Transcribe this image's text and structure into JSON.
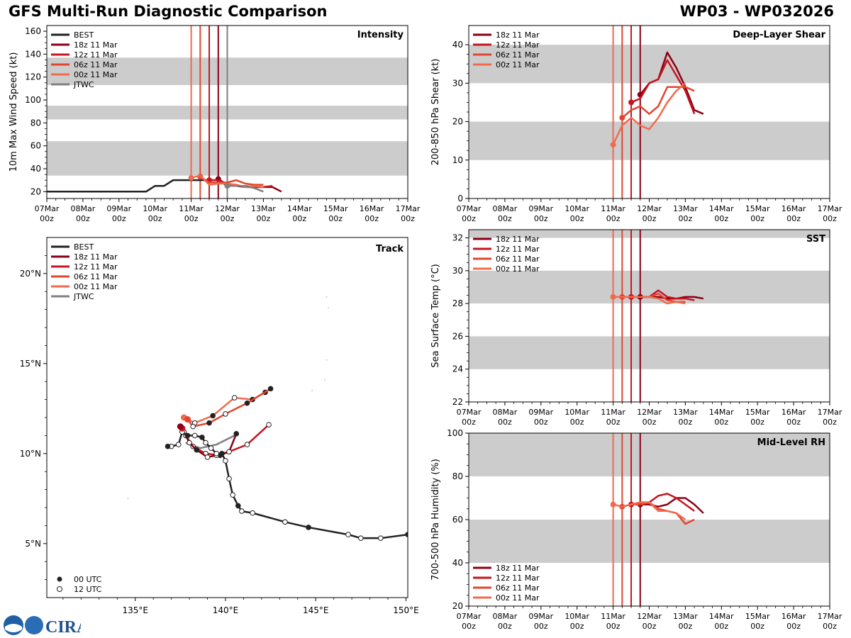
{
  "header": {
    "title": "GFS Multi-Run Diagnostic Comparison",
    "storm": "WP03 - WP032026"
  },
  "logo": {
    "text": "CIRA"
  },
  "colors": {
    "best": "#222222",
    "r18": "#8b0016",
    "r12": "#c8141e",
    "r06": "#e2452f",
    "r00": "#f06a4e",
    "jtwc": "#808080",
    "band": "#cccccc"
  },
  "time_ticks": {
    "top": [
      "07Mar",
      "08Mar",
      "09Mar",
      "10Mar",
      "11Mar",
      "12Mar",
      "13Mar",
      "14Mar",
      "15Mar",
      "16Mar",
      "17Mar"
    ],
    "bottom": [
      "00z",
      "00z",
      "00z",
      "00z",
      "00z",
      "00z",
      "00z",
      "00z",
      "00z",
      "00z",
      "00z"
    ]
  },
  "chart_data": [
    {
      "id": "intensity",
      "type": "line",
      "title": "Intensity",
      "ylabel": "10m Max Wind Speed (kt)",
      "xlim": [
        0,
        10
      ],
      "ylim": [
        14,
        165
      ],
      "yticks": [
        20,
        40,
        60,
        80,
        100,
        120,
        140,
        160
      ],
      "bands": [
        [
          34,
          64
        ],
        [
          83,
          95
        ],
        [
          113,
          137
        ]
      ],
      "vlines": [
        {
          "x": 4.0,
          "color": "r00"
        },
        {
          "x": 4.25,
          "color": "r06"
        },
        {
          "x": 4.5,
          "color": "r12"
        },
        {
          "x": 4.75,
          "color": "r18"
        },
        {
          "x": 5.0,
          "color": "jtwc"
        }
      ],
      "legend": [
        "BEST",
        "18z 11 Mar",
        "12z 11 Mar",
        "06z 11 Mar",
        "00z 11 Mar",
        "JTWC"
      ],
      "series": [
        {
          "name": "BEST",
          "color": "best",
          "x": [
            0,
            0.25,
            0.5,
            0.75,
            1,
            1.25,
            1.5,
            1.75,
            2,
            2.25,
            2.5,
            2.75,
            3,
            3.25,
            3.5,
            3.75,
            4,
            4.25,
            4.5,
            4.75,
            5
          ],
          "y": [
            20,
            20,
            20,
            20,
            20,
            20,
            20,
            20,
            20,
            20,
            20,
            20,
            25,
            25,
            30,
            30,
            30,
            30,
            30,
            30,
            25
          ],
          "start": null
        },
        {
          "name": "18z 11 Mar",
          "color": "r18",
          "x": [
            4.75,
            5.0,
            5.25,
            5.5,
            5.75,
            6.0,
            6.25,
            6.5
          ],
          "y": [
            31,
            26,
            25,
            24,
            24,
            24,
            24,
            20
          ],
          "start": 4.75
        },
        {
          "name": "12z 11 Mar",
          "color": "r12",
          "x": [
            4.5,
            4.75,
            5.0,
            5.25,
            5.5,
            5.75,
            6.0,
            6.25
          ],
          "y": [
            30,
            30,
            26,
            25,
            25,
            24,
            24,
            25
          ],
          "start": 4.5
        },
        {
          "name": "06z 11 Mar",
          "color": "r06",
          "x": [
            4.25,
            4.5,
            4.75,
            5.0,
            5.25,
            5.5,
            5.75,
            6.0
          ],
          "y": [
            33,
            28,
            28,
            28,
            30,
            27,
            26,
            26
          ],
          "start": 4.25
        },
        {
          "name": "00z 11 Mar",
          "color": "r00",
          "x": [
            4.0,
            4.25,
            4.5,
            4.75,
            5.0,
            5.25,
            5.5,
            5.75,
            6.0
          ],
          "y": [
            32,
            34,
            26,
            27,
            27,
            26,
            24,
            25,
            24
          ],
          "start": 4.0
        },
        {
          "name": "JTWC",
          "color": "jtwc",
          "x": [
            5.0,
            5.25,
            5.5,
            5.75,
            6.0
          ],
          "y": [
            25,
            25,
            25,
            23,
            20
          ],
          "start": 5.0
        }
      ]
    },
    {
      "id": "shear",
      "type": "line",
      "title": "Deep-Layer Shear",
      "ylabel": "200-850 hPa Shear (kt)",
      "xlim": [
        0,
        10
      ],
      "ylim": [
        0,
        45
      ],
      "yticks": [
        0,
        10,
        20,
        30,
        40
      ],
      "bands": [
        [
          10,
          20
        ],
        [
          30,
          40
        ]
      ],
      "vlines": [
        {
          "x": 4.0,
          "color": "r00"
        },
        {
          "x": 4.25,
          "color": "r06"
        },
        {
          "x": 4.5,
          "color": "r12"
        },
        {
          "x": 4.75,
          "color": "r18"
        }
      ],
      "legend": [
        "18z 11 Mar",
        "12z 11 Mar",
        "06z 11 Mar",
        "00z 11 Mar"
      ],
      "series": [
        {
          "name": "18z 11 Mar",
          "color": "r18",
          "x": [
            4.75,
            5.0,
            5.25,
            5.5,
            5.75,
            6.0,
            6.25,
            6.5
          ],
          "y": [
            27,
            30,
            31,
            38,
            34,
            29,
            23,
            22
          ],
          "start": 4.75
        },
        {
          "name": "12z 11 Mar",
          "color": "r12",
          "x": [
            4.5,
            4.75,
            5.0,
            5.25,
            5.5,
            5.75,
            6.0,
            6.25
          ],
          "y": [
            25,
            26,
            30,
            31,
            36,
            32,
            28,
            22
          ],
          "start": 4.5
        },
        {
          "name": "06z 11 Mar",
          "color": "r06",
          "x": [
            4.25,
            4.5,
            4.75,
            5.0,
            5.25,
            5.5,
            5.75,
            6.0,
            6.25
          ],
          "y": [
            21,
            23,
            24,
            22,
            24,
            29,
            29,
            29,
            28
          ],
          "start": 4.25
        },
        {
          "name": "00z 11 Mar",
          "color": "r00",
          "x": [
            4.0,
            4.25,
            4.5,
            4.75,
            5.0,
            5.25,
            5.5,
            5.75,
            6.0
          ],
          "y": [
            14,
            19,
            21,
            19,
            18,
            21,
            25,
            28,
            30
          ],
          "start": 4.0
        }
      ]
    },
    {
      "id": "track",
      "type": "scatter",
      "title": "Track",
      "xlim": [
        130.1,
        150.1
      ],
      "ylim": [
        2,
        22
      ],
      "xticks": [
        135,
        140,
        145,
        150
      ],
      "yticks": [
        5,
        10,
        15,
        20
      ],
      "xticklabels": [
        "135°E",
        "140°E",
        "145°E",
        "150°E"
      ],
      "yticklabels": [
        "5°N",
        "10°N",
        "15°N",
        "20°N"
      ],
      "legend": [
        "BEST",
        "18z 11 Mar",
        "12z 11 Mar",
        "06z 11 Mar",
        "00z 11 Mar",
        "JTWC"
      ],
      "marker_legend": [
        "00 UTC",
        "12 UTC"
      ],
      "series": [
        {
          "name": "BEST",
          "color": "best",
          "lon": [
            150.1,
            148.6,
            147.5,
            146.8,
            144.6,
            143.3,
            141.5,
            140.9,
            140.7,
            140.4,
            140.2,
            140.0,
            139.8,
            139.5,
            139.2,
            138.9,
            138.7,
            138.3,
            137.9,
            137.6,
            137.4,
            137.0,
            136.8
          ],
          "lat": [
            5.5,
            5.3,
            5.3,
            5.5,
            5.9,
            6.2,
            6.7,
            6.8,
            7.1,
            7.7,
            8.6,
            9.6,
            10.0,
            10.0,
            10.3,
            10.6,
            10.9,
            11.0,
            11.0,
            11.2,
            10.5,
            10.4,
            10.4
          ],
          "filled": [
            1,
            0,
            0,
            0,
            1,
            0,
            0,
            0,
            1,
            0,
            0,
            0,
            1,
            0,
            0,
            0,
            1,
            0,
            1,
            0,
            0,
            0,
            1
          ]
        },
        {
          "name": "18z 11 Mar",
          "color": "r18",
          "lon": [
            137.5,
            137.7,
            138.0,
            138.4,
            139.0,
            139.5,
            140.2,
            140.6
          ],
          "lat": [
            11.5,
            11.2,
            10.6,
            10.2,
            9.8,
            9.9,
            10.1,
            11.1
          ],
          "filled": [
            1,
            0,
            0,
            1,
            0,
            0,
            0,
            1
          ]
        },
        {
          "name": "12z 11 Mar",
          "color": "r12",
          "lon": [
            137.6,
            137.8,
            138.2,
            138.9,
            139.7,
            141.2,
            142.4
          ],
          "lat": [
            11.4,
            11.0,
            10.4,
            10.0,
            9.9,
            10.5,
            11.6
          ],
          "filled": [
            1,
            0,
            0,
            0,
            1,
            0,
            0
          ]
        },
        {
          "name": "06z 11 Mar",
          "color": "r06",
          "lon": [
            137.9,
            138.2,
            139.1,
            140.0,
            141.2,
            142.5
          ],
          "lat": [
            11.9,
            11.5,
            11.7,
            12.2,
            12.8,
            13.6
          ],
          "filled": [
            1,
            0,
            1,
            0,
            1,
            1
          ]
        },
        {
          "name": "00z 11 Mar",
          "color": "r00",
          "lon": [
            137.7,
            138.3,
            139.3,
            140.5,
            141.5,
            142.2
          ],
          "lat": [
            12.0,
            11.7,
            12.1,
            13.1,
            13.0,
            13.4
          ],
          "filled": [
            1,
            0,
            1,
            0,
            1,
            1
          ]
        },
        {
          "name": "JTWC",
          "color": "jtwc",
          "lon": [
            137.8,
            138.6,
            139.5,
            140.5
          ],
          "lat": [
            10.6,
            10.3,
            10.5,
            11.0
          ],
          "filled": [
            0,
            0,
            0,
            0
          ]
        }
      ]
    },
    {
      "id": "sst",
      "type": "line",
      "title": "SST",
      "ylabel": "Sea Surface Temp (°C)",
      "xlim": [
        0,
        10
      ],
      "ylim": [
        22,
        32.5
      ],
      "yticks": [
        22,
        24,
        26,
        28,
        30,
        32
      ],
      "bands": [
        [
          24,
          26
        ],
        [
          28,
          30
        ],
        [
          32,
          34
        ]
      ],
      "vlines": [
        {
          "x": 4.0,
          "color": "r00"
        },
        {
          "x": 4.25,
          "color": "r06"
        },
        {
          "x": 4.5,
          "color": "r12"
        },
        {
          "x": 4.75,
          "color": "r18"
        }
      ],
      "legend": [
        "18z 11 Mar",
        "12z 11 Mar",
        "06z 11 Mar",
        "00z 11 Mar"
      ],
      "series": [
        {
          "name": "18z 11 Mar",
          "color": "r18",
          "x": [
            4.75,
            5.0,
            5.25,
            5.5,
            5.75,
            6.0,
            6.25,
            6.5
          ],
          "y": [
            28.4,
            28.4,
            28.4,
            28.3,
            28.3,
            28.4,
            28.4,
            28.3
          ],
          "start": 4.75
        },
        {
          "name": "12z 11 Mar",
          "color": "r12",
          "x": [
            4.5,
            4.75,
            5.0,
            5.25,
            5.5,
            5.75,
            6.0,
            6.25
          ],
          "y": [
            28.4,
            28.4,
            28.4,
            28.8,
            28.4,
            28.3,
            28.3,
            28.2
          ],
          "start": 4.5
        },
        {
          "name": "06z 11 Mar",
          "color": "r06",
          "x": [
            4.25,
            4.5,
            4.75,
            5.0,
            5.25,
            5.5,
            5.75,
            6.0
          ],
          "y": [
            28.4,
            28.4,
            28.4,
            28.4,
            28.6,
            28.2,
            28.1,
            28.1
          ],
          "start": 4.25
        },
        {
          "name": "00z 11 Mar",
          "color": "r00",
          "x": [
            4.0,
            4.25,
            4.5,
            4.75,
            5.0,
            5.25,
            5.5,
            5.75,
            6.0
          ],
          "y": [
            28.4,
            28.4,
            28.4,
            28.4,
            28.4,
            28.3,
            28.0,
            28.1,
            28.0
          ],
          "start": 4.0
        }
      ]
    },
    {
      "id": "rh",
      "type": "line",
      "title": "Mid-Level RH",
      "ylabel": "700-500 hPa Humidity (%)",
      "xlim": [
        0,
        10
      ],
      "ylim": [
        20,
        100
      ],
      "yticks": [
        20,
        40,
        60,
        80,
        100
      ],
      "bands": [
        [
          40,
          60
        ],
        [
          80,
          100
        ]
      ],
      "vlines": [
        {
          "x": 4.0,
          "color": "r00"
        },
        {
          "x": 4.25,
          "color": "r06"
        },
        {
          "x": 4.5,
          "color": "r12"
        },
        {
          "x": 4.75,
          "color": "r18"
        }
      ],
      "legend": [
        "18z 11 Mar",
        "12z 11 Mar",
        "06z 11 Mar",
        "00z 11 Mar"
      ],
      "series": [
        {
          "name": "18z 11 Mar",
          "color": "r18",
          "x": [
            4.75,
            5.0,
            5.25,
            5.5,
            5.75,
            6.0,
            6.25,
            6.5
          ],
          "y": [
            67,
            67,
            66,
            67,
            70,
            70,
            67,
            63
          ],
          "start": 4.75
        },
        {
          "name": "12z 11 Mar",
          "color": "r12",
          "x": [
            4.5,
            4.75,
            5.0,
            5.25,
            5.5,
            5.75,
            6.0,
            6.25
          ],
          "y": [
            67,
            68,
            68,
            71,
            72,
            70,
            67,
            64
          ],
          "start": 4.5
        },
        {
          "name": "06z 11 Mar",
          "color": "r06",
          "x": [
            4.25,
            4.5,
            4.75,
            5.0,
            5.25,
            5.5,
            5.75,
            6.0,
            6.25
          ],
          "y": [
            66,
            67,
            67,
            68,
            65,
            64,
            63,
            58,
            60
          ],
          "start": 4.25
        },
        {
          "name": "00z 11 Mar",
          "color": "r00",
          "x": [
            4.0,
            4.25,
            4.5,
            4.75,
            5.0,
            5.25,
            5.5,
            5.75,
            6.0
          ],
          "y": [
            67,
            66,
            67,
            68,
            68,
            64,
            64,
            63,
            60
          ],
          "start": 4.0
        }
      ]
    }
  ]
}
